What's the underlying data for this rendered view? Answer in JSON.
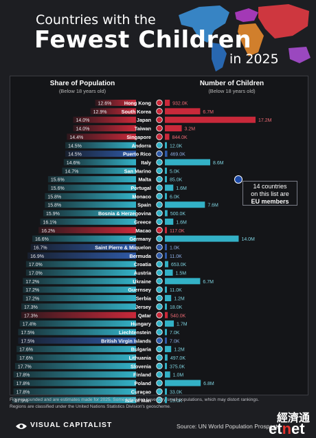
{
  "title": {
    "line1": "Countries with the",
    "line2": "Fewest Children",
    "line3": "in 2025"
  },
  "headers": {
    "left_title": "Share of Population",
    "left_sub": "(Below 18 years old)",
    "right_title": "Number of Children",
    "right_sub": "(Below 18 years old)"
  },
  "callout": {
    "line1": "14 countries",
    "line2": "on this list are",
    "line3": "EU members"
  },
  "footer": {
    "note1": "Figures rounded and are estimates made for 2025. Some territories have very small populations, which may distort rankings.",
    "note2": "Regions are classified under the United Nations Statistics Division's geoscheme.",
    "brand": "VISUAL CAPITALIST",
    "source": "Source: UN World Population Prospects"
  },
  "watermark": {
    "cn": "經濟通",
    "brand_pre": "et",
    "brand_n": "n",
    "brand_post": "et"
  },
  "colors": {
    "east_asia": "#c9293a",
    "blue": "#2f5aa8",
    "teal": "#33b1c6",
    "bg": "#1d1e22",
    "panel": "#141518"
  },
  "chart_data": {
    "type": "bar",
    "categories": [
      "Hong Kong",
      "South Korea",
      "Japan",
      "Taiwan",
      "Singapore",
      "Andorra",
      "Puerto Rico",
      "Italy",
      "San Marino",
      "Malta",
      "Portugal",
      "Monaco",
      "Spain",
      "Bosnia & Herzegovina",
      "Greece",
      "Macao",
      "Germany",
      "Saint Pierre & Miquelon",
      "Bermuda",
      "Croatia",
      "Austria",
      "Ukraine",
      "Guernsey",
      "Serbia",
      "Jersey",
      "Qatar",
      "Hungary",
      "Liechtenstein",
      "British Virgin Islands",
      "Bulgaria",
      "Lithuania",
      "Slovenia",
      "Finland",
      "Poland",
      "Curaçao",
      "Isle of Man"
    ],
    "series": [
      {
        "name": "Share of Population",
        "values": [
          12.6,
          12.9,
          14.0,
          14.0,
          14.4,
          14.5,
          14.5,
          14.6,
          14.7,
          15.6,
          15.6,
          15.8,
          15.8,
          15.9,
          16.1,
          16.2,
          16.6,
          16.7,
          16.9,
          17.0,
          17.0,
          17.2,
          17.2,
          17.2,
          17.3,
          17.3,
          17.4,
          17.5,
          17.5,
          17.6,
          17.6,
          17.7,
          17.8,
          17.8,
          17.8,
          17.9
        ],
        "labels": [
          "12.6%",
          "12.9%",
          "14.0%",
          "14.0%",
          "14.4%",
          "14.5%",
          "14.5%",
          "14.6%",
          "14.7%",
          "15.6%",
          "15.6%",
          "15.8%",
          "15.8%",
          "15.9%",
          "16.1%",
          "16.2%",
          "16.6%",
          "16.7%",
          "16.9%",
          "17.0%",
          "17.0%",
          "17.2%",
          "17.2%",
          "17.2%",
          "17.3%",
          "17.3%",
          "17.4%",
          "17.5%",
          "17.5%",
          "17.6%",
          "17.6%",
          "17.7%",
          "17.8%",
          "17.8%",
          "17.8%",
          "17.9%"
        ]
      },
      {
        "name": "Number of Children",
        "values": [
          932000,
          6700000,
          17200000,
          3200000,
          844000,
          12000,
          469000,
          8600000,
          5000,
          85000,
          1600000,
          6000,
          7600000,
          500000,
          1600000,
          117000,
          14000000,
          1000,
          11000,
          653000,
          1500000,
          6700000,
          11000,
          1200000,
          18000,
          540000,
          1700000,
          7000,
          7000,
          1200000,
          497000,
          375000,
          1000000,
          6800000,
          33000,
          15000
        ],
        "labels": [
          "932.0K",
          "6.7M",
          "17.2M",
          "3.2M",
          "844.0K",
          "12.0K",
          "469.0K",
          "8.6M",
          "5.0K",
          "85.0K",
          "1.6M",
          "6.0K",
          "7.6M",
          "500.0K",
          "1.6M",
          "117.0K",
          "14.0M",
          "1.0K",
          "11.0K",
          "653.0K",
          "1.5M",
          "6.7M",
          "11.0K",
          "1.2M",
          "18.0K",
          "540.0K",
          "1.7M",
          "7.0K",
          "7.0K",
          "1.2M",
          "497.0K",
          "375.0K",
          "1.0M",
          "6.8M",
          "33.0K",
          "15.0K"
        ]
      }
    ],
    "groups": [
      "r",
      "r",
      "r",
      "r",
      "r",
      "t",
      "b",
      "t",
      "t",
      "t",
      "t",
      "t",
      "t",
      "t",
      "t",
      "r",
      "t",
      "b",
      "b",
      "t",
      "t",
      "t",
      "t",
      "t",
      "t",
      "r",
      "t",
      "t",
      "b",
      "t",
      "t",
      "t",
      "t",
      "t",
      "t",
      "t"
    ],
    "xlabel": "",
    "ylabel": ""
  }
}
